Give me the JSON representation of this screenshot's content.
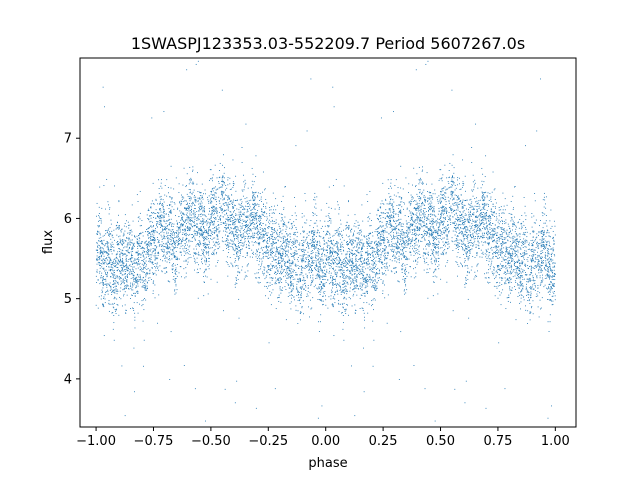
{
  "chart_data": {
    "type": "scatter",
    "title": "1SWASPJ123353.03-552209.7 Period 5607267.0s",
    "xlabel": "phase",
    "ylabel": "flux",
    "xlim": [
      -1.07,
      1.09
    ],
    "ylim": [
      3.4,
      8.0
    ],
    "x_ticks": [
      -1.0,
      -0.75,
      -0.5,
      -0.25,
      0.0,
      0.25,
      0.5,
      0.75,
      1.0
    ],
    "x_tick_labels": [
      "−1.00",
      "−0.75",
      "−0.50",
      "−0.25",
      "0.00",
      "0.25",
      "0.50",
      "0.75",
      "1.00"
    ],
    "y_ticks": [
      4,
      5,
      6,
      7
    ],
    "y_tick_labels": [
      "4",
      "5",
      "6",
      "7"
    ],
    "grid": false,
    "point_color": "#1f77b4",
    "profile": {
      "phase": [
        0.0,
        0.05,
        0.1,
        0.15,
        0.2,
        0.25,
        0.3,
        0.35,
        0.4,
        0.45,
        0.5,
        0.55,
        0.6,
        0.65,
        0.7,
        0.75,
        0.8,
        0.85,
        0.9,
        0.95,
        1.0
      ],
      "flux": [
        5.4,
        5.5,
        5.45,
        5.35,
        5.55,
        5.65,
        5.8,
        5.75,
        5.9,
        5.95,
        5.9,
        6.05,
        5.95,
        5.85,
        5.9,
        5.7,
        5.5,
        5.5,
        5.4,
        5.5,
        5.4
      ]
    },
    "scatter_sd": 0.27,
    "n_points": 9000,
    "seed": 20240517
  }
}
